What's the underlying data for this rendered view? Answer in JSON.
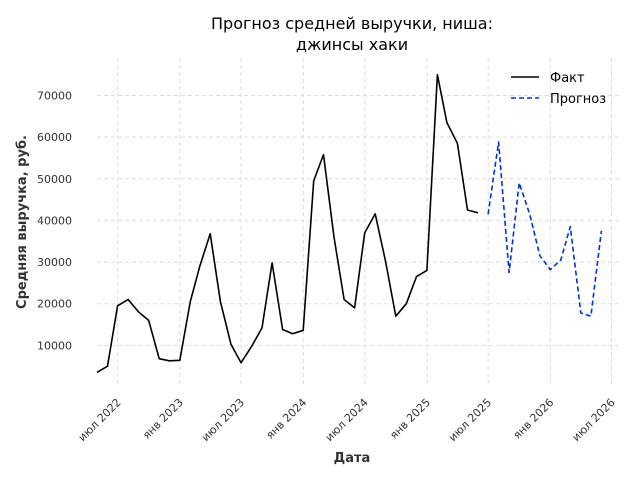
{
  "chart_data": {
    "type": "line",
    "title_line1": "Прогноз средней выручки, ниша:",
    "title_line2": "джинсы хаки",
    "xlabel": "Дата",
    "ylabel": "Средняя выручка, руб.",
    "ylim": [
      0,
      79000
    ],
    "yticks": [
      10000,
      20000,
      30000,
      40000,
      50000,
      60000,
      70000
    ],
    "xticks": [
      {
        "date": "2022-07-01",
        "label": "июл 2022"
      },
      {
        "date": "2023-01-01",
        "label": "янв 2023"
      },
      {
        "date": "2023-07-01",
        "label": "июл 2023"
      },
      {
        "date": "2024-01-01",
        "label": "янв 2024"
      },
      {
        "date": "2024-07-01",
        "label": "июл 2024"
      },
      {
        "date": "2025-01-01",
        "label": "янв 2025"
      },
      {
        "date": "2025-07-01",
        "label": "июл 2025"
      },
      {
        "date": "2026-01-01",
        "label": "янв 2026"
      },
      {
        "date": "2026-07-01",
        "label": "июл 2026"
      }
    ],
    "xlim": [
      "2022-05-01",
      "2026-08-01"
    ],
    "grid": true,
    "legend_position": "top-right",
    "series": [
      {
        "name": "Факт",
        "color": "#000000",
        "style": "solid",
        "points": [
          [
            "2022-05-01",
            3500
          ],
          [
            "2022-06-01",
            5000
          ],
          [
            "2022-07-01",
            19500
          ],
          [
            "2022-08-01",
            21000
          ],
          [
            "2022-09-01",
            18000
          ],
          [
            "2022-10-01",
            16000
          ],
          [
            "2022-11-01",
            6800
          ],
          [
            "2022-12-01",
            6300
          ],
          [
            "2023-01-01",
            6400
          ],
          [
            "2023-02-01",
            20500
          ],
          [
            "2023-03-01",
            29000
          ],
          [
            "2023-04-01",
            36800
          ],
          [
            "2023-05-01",
            20500
          ],
          [
            "2023-06-01",
            10300
          ],
          [
            "2023-07-01",
            5800
          ],
          [
            "2023-08-01",
            9700
          ],
          [
            "2023-09-01",
            14200
          ],
          [
            "2023-10-01",
            29800
          ],
          [
            "2023-11-01",
            13800
          ],
          [
            "2023-12-01",
            12800
          ],
          [
            "2024-01-01",
            13600
          ],
          [
            "2024-02-01",
            49500
          ],
          [
            "2024-03-01",
            55800
          ],
          [
            "2024-04-01",
            36000
          ],
          [
            "2024-05-01",
            21000
          ],
          [
            "2024-06-01",
            19000
          ],
          [
            "2024-07-01",
            37000
          ],
          [
            "2024-08-01",
            41600
          ],
          [
            "2024-09-01",
            30000
          ],
          [
            "2024-10-01",
            17000
          ],
          [
            "2024-11-01",
            20000
          ],
          [
            "2024-12-01",
            26500
          ],
          [
            "2025-01-01",
            28000
          ],
          [
            "2025-02-01",
            75000
          ],
          [
            "2025-03-01",
            63500
          ],
          [
            "2025-04-01",
            58500
          ],
          [
            "2025-05-01",
            42500
          ],
          [
            "2025-06-01",
            41800
          ]
        ]
      },
      {
        "name": "Прогноз",
        "color": "#0033cc",
        "style": "dashed",
        "points": [
          [
            "2025-07-01",
            41500
          ],
          [
            "2025-08-01",
            58800
          ],
          [
            "2025-09-01",
            27500
          ],
          [
            "2025-10-01",
            49000
          ],
          [
            "2025-11-01",
            41500
          ],
          [
            "2025-12-01",
            31500
          ],
          [
            "2026-01-01",
            28200
          ],
          [
            "2026-02-01",
            30500
          ],
          [
            "2026-03-01",
            38500
          ],
          [
            "2026-04-01",
            17800
          ],
          [
            "2026-05-01",
            17000
          ],
          [
            "2026-06-01",
            37500
          ]
        ]
      }
    ]
  }
}
